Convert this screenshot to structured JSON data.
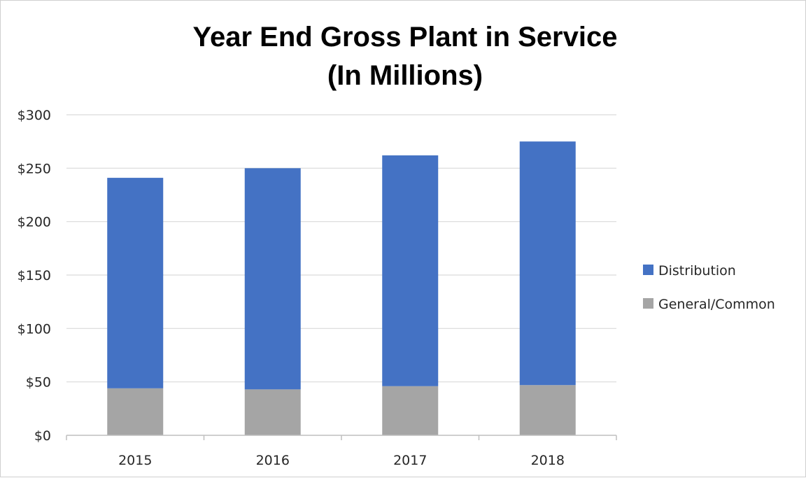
{
  "chart_data": {
    "type": "bar",
    "stacked": true,
    "title": "Year End Gross Plant in Service",
    "subtitle": "(In Millions)",
    "xlabel": "",
    "ylabel": "",
    "categories": [
      "2015",
      "2016",
      "2017",
      "2018"
    ],
    "series": [
      {
        "name": "General/Common",
        "values": [
          44,
          43,
          46,
          47
        ],
        "color": "#a5a5a5"
      },
      {
        "name": "Distribution",
        "values": [
          197,
          207,
          216,
          228
        ],
        "color": "#4472c4"
      }
    ],
    "ylim": [
      0,
      300
    ],
    "yticks": [
      0,
      50,
      100,
      150,
      200,
      250,
      300
    ],
    "ytick_labels": [
      "$0",
      "$50",
      "$100",
      "$150",
      "$200",
      "$250",
      "$300"
    ],
    "grid": true,
    "legend": {
      "position": "right",
      "entries": [
        "Distribution",
        "General/Common"
      ]
    }
  }
}
